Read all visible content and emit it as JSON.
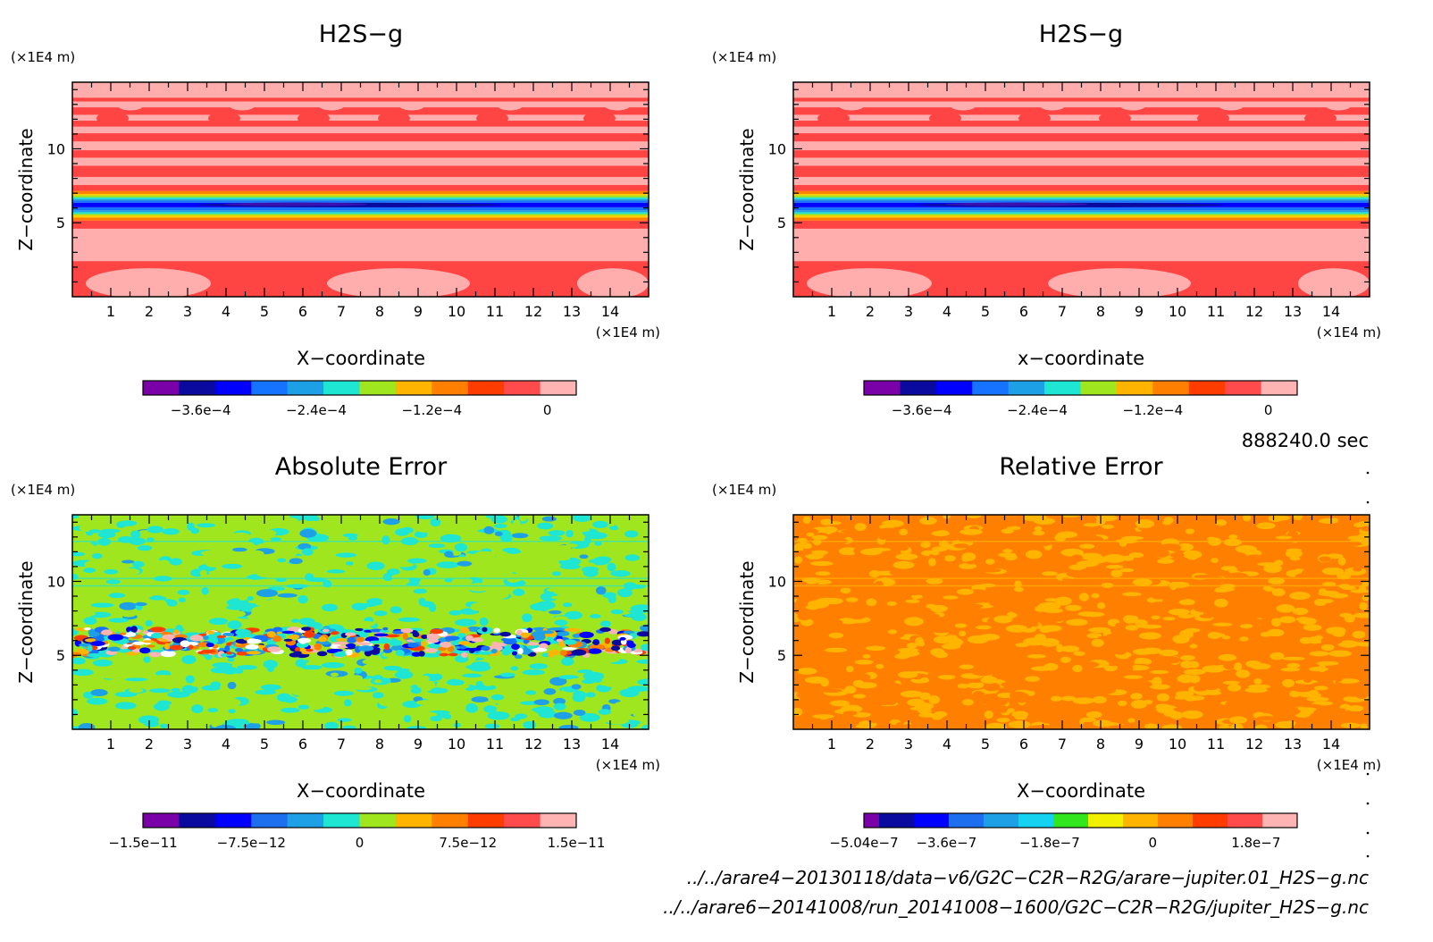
{
  "chart_data": [
    {
      "type": "heatmap",
      "title": "H2S−g",
      "xlabel": "X−coordinate",
      "ylabel": "Z−coordinate",
      "x_unit": "(×1E4 m)",
      "y_unit": "(×1E4 m)",
      "xlim": [
        0,
        15
      ],
      "ylim": [
        0,
        14.5
      ],
      "xticks": [
        1,
        2,
        3,
        4,
        5,
        6,
        7,
        8,
        9,
        10,
        11,
        12,
        13,
        14
      ],
      "yticks": [
        5,
        10
      ],
      "colorbar": {
        "colors": [
          "#7a00a8",
          "#0a0a9e",
          "#0000ff",
          "#1673ff",
          "#1ea0e6",
          "#1ee6d2",
          "#a0e61e",
          "#ffb400",
          "#ff8000",
          "#ff3c00",
          "#ff4b4b",
          "#ffb4b4"
        ],
        "ticks": [
          {
            "label": "−3.6e−4",
            "value": -0.00036
          },
          {
            "label": "−2.4e−4",
            "value": -0.00024
          },
          {
            "label": "−1.2e−4",
            "value": -0.00012
          },
          {
            "label": "0",
            "value": 0
          }
        ],
        "range": [
          -0.00042,
          3e-05
        ]
      }
    },
    {
      "type": "heatmap",
      "title": "H2S−g",
      "xlabel": "x−coordinate",
      "ylabel": "Z−coordinate",
      "x_unit": "(×1E4 m)",
      "y_unit": "(×1E4 m)",
      "xlim": [
        0,
        15
      ],
      "ylim": [
        0,
        14.5
      ],
      "xticks": [
        1,
        2,
        3,
        4,
        5,
        6,
        7,
        8,
        9,
        10,
        11,
        12,
        13,
        14
      ],
      "yticks": [
        5,
        10
      ],
      "colorbar": {
        "colors": [
          "#7a00a8",
          "#0a0a9e",
          "#0000ff",
          "#1673ff",
          "#1ea0e6",
          "#1ee6d2",
          "#a0e61e",
          "#ffb400",
          "#ff8000",
          "#ff3c00",
          "#ff4b4b",
          "#ffb4b4"
        ],
        "ticks": [
          {
            "label": "−3.6e−4",
            "value": -0.00036
          },
          {
            "label": "−2.4e−4",
            "value": -0.00024
          },
          {
            "label": "−1.2e−4",
            "value": -0.00012
          },
          {
            "label": "0",
            "value": 0
          }
        ],
        "range": [
          -0.00042,
          3e-05
        ]
      }
    },
    {
      "type": "heatmap",
      "title": "Absolute Error",
      "xlabel": "X−coordinate",
      "ylabel": "Z−coordinate",
      "x_unit": "(×1E4 m)",
      "y_unit": "(×1E4 m)",
      "xlim": [
        0,
        15
      ],
      "ylim": [
        0,
        14.5
      ],
      "xticks": [
        1,
        2,
        3,
        4,
        5,
        6,
        7,
        8,
        9,
        10,
        11,
        12,
        13,
        14
      ],
      "yticks": [
        5,
        10
      ],
      "colorbar": {
        "colors": [
          "#7a00a8",
          "#0a0a9e",
          "#0000ff",
          "#1e6ef0",
          "#1ea0e6",
          "#1ee6d2",
          "#a0e61e",
          "#ffb400",
          "#ff8000",
          "#ff3c00",
          "#ff4b4b",
          "#ffb4b4"
        ],
        "ticks": [
          {
            "label": "−1.5e−11",
            "value": -1.5e-11
          },
          {
            "label": "−7.5e−12",
            "value": -7.5e-12
          },
          {
            "label": "0",
            "value": 0
          },
          {
            "label": "7.5e−12",
            "value": 7.5e-12
          },
          {
            "label": "1.5e−11",
            "value": 1.5e-11
          }
        ],
        "range": [
          -1.5e-11,
          1.5e-11
        ]
      }
    },
    {
      "type": "heatmap",
      "title": "Relative Error",
      "xlabel": "X−coordinate",
      "ylabel": "Z−coordinate",
      "x_unit": "(×1E4 m)",
      "y_unit": "(×1E4 m)",
      "xlim": [
        0,
        15
      ],
      "ylim": [
        0,
        14.5
      ],
      "xticks": [
        1,
        2,
        3,
        4,
        5,
        6,
        7,
        8,
        9,
        10,
        11,
        12,
        13,
        14
      ],
      "yticks": [
        5,
        10
      ],
      "colorbar": {
        "colors": [
          "#7a00a8",
          "#0a0a9e",
          "#0000ff",
          "#1e6ef0",
          "#1ea0e6",
          "#14d2f0",
          "#32e61e",
          "#f0f000",
          "#ffb400",
          "#ff8000",
          "#ff3c00",
          "#ff4b4b",
          "#ffb4b4"
        ],
        "ticks": [
          {
            "label": "−5.04e−7",
            "value": -5.04e-07
          },
          {
            "label": "−3.6e−7",
            "value": -3.6e-07
          },
          {
            "label": "−1.8e−7",
            "value": -1.8e-07
          },
          {
            "label": "0",
            "value": 0
          },
          {
            "label": "1.8e−7",
            "value": 1.8e-07
          }
        ],
        "range": [
          -5.04e-07,
          2.52e-07
        ]
      }
    }
  ],
  "time_label": "888240.0 sec",
  "file_paths": [
    "../../arare4−20130118/data−v6/G2C−C2R−R2G/arare−jupiter.01_H2S−g.nc",
    "../../arare6−20141008/run_20141008−1600/G2C−C2R−R2G/jupiter_H2S−g.nc"
  ]
}
